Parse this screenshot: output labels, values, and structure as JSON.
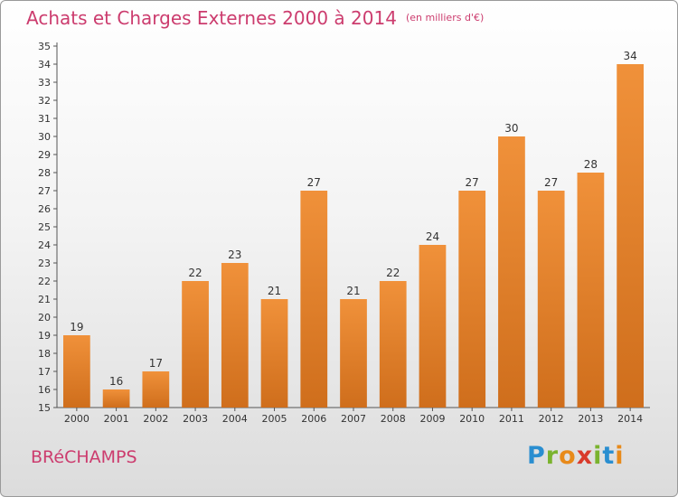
{
  "header": {
    "title": "Achats et Charges Externes 2000 à 2014",
    "unit": "(en milliers d'€)"
  },
  "footer": {
    "location": "BRéCHAMPS",
    "logo_letters": [
      {
        "char": "P",
        "color": "#2a8ed0"
      },
      {
        "char": "r",
        "color": "#7ab32e"
      },
      {
        "char": "o",
        "color": "#e88a1a"
      },
      {
        "char": "x",
        "color": "#d93a2b"
      },
      {
        "char": "i",
        "color": "#7ab32e"
      },
      {
        "char": "t",
        "color": "#2a8ed0"
      },
      {
        "char": "i",
        "color": "#e88a1a"
      }
    ]
  },
  "chart_data": {
    "type": "bar",
    "categories": [
      "2000",
      "2001",
      "2002",
      "2003",
      "2004",
      "2005",
      "2006",
      "2007",
      "2008",
      "2009",
      "2010",
      "2011",
      "2012",
      "2013",
      "2014"
    ],
    "values": [
      19,
      16,
      17,
      22,
      23,
      21,
      27,
      21,
      22,
      24,
      27,
      30,
      27,
      28,
      34
    ],
    "ylim": [
      15,
      35
    ],
    "yticks": [
      15,
      16,
      17,
      18,
      19,
      20,
      21,
      22,
      23,
      24,
      25,
      26,
      27,
      28,
      29,
      30,
      31,
      32,
      33,
      34,
      35
    ],
    "grid": false,
    "bar_color": "#f0913a",
    "bar_color_dark": "#cf6e1c"
  }
}
